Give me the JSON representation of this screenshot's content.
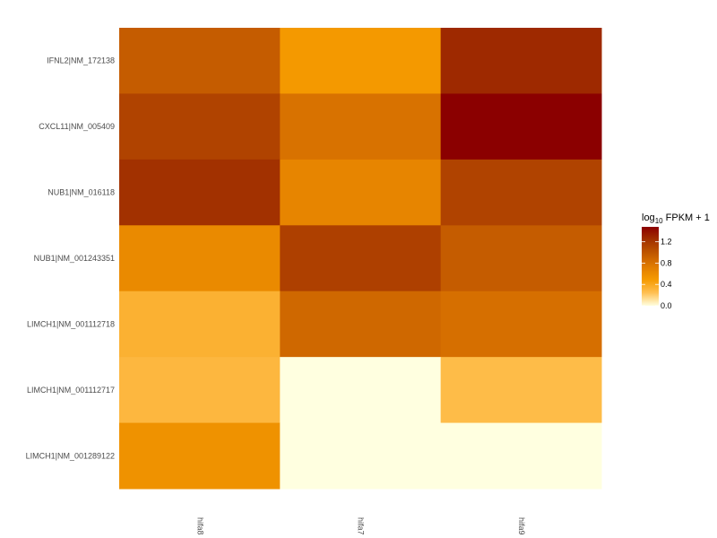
{
  "chart_data": {
    "type": "heatmap",
    "title": "",
    "xlabel": "",
    "ylabel": "",
    "rows": [
      "IFNL2|NM_172138",
      "CXCL11|NM_005409",
      "NUB1|NM_016118",
      "NUB1|NM_001243351",
      "LIMCH1|NM_001112718",
      "LIMCH1|NM_001112717",
      "LIMCH1|NM_001289122"
    ],
    "columns": [
      "hifa8",
      "hifa7",
      "hifa9"
    ],
    "values": [
      [
        0.95,
        0.5,
        1.28
      ],
      [
        1.12,
        0.8,
        1.48
      ],
      [
        1.24,
        0.66,
        1.12
      ],
      [
        0.62,
        1.14,
        0.95
      ],
      [
        0.34,
        0.87,
        0.82
      ],
      [
        0.3,
        0.0,
        0.27
      ],
      [
        0.56,
        0.0,
        0.0
      ]
    ],
    "colorbar": {
      "title_main": "log",
      "title_sub": "10",
      "title_rest": " FPKM + 1",
      "range": [
        0,
        1.48
      ],
      "ticks": [
        0.0,
        0.4,
        0.8,
        1.2
      ],
      "tick_labels": [
        "0.0",
        "0.4",
        "0.8",
        "1.2"
      ],
      "colors": [
        "#ffffe0",
        "#ffbf50",
        "#f59a00",
        "#e07b00",
        "#c05700",
        "#a33200",
        "#8b0000"
      ],
      "legend_position": "right"
    },
    "grid": false
  }
}
